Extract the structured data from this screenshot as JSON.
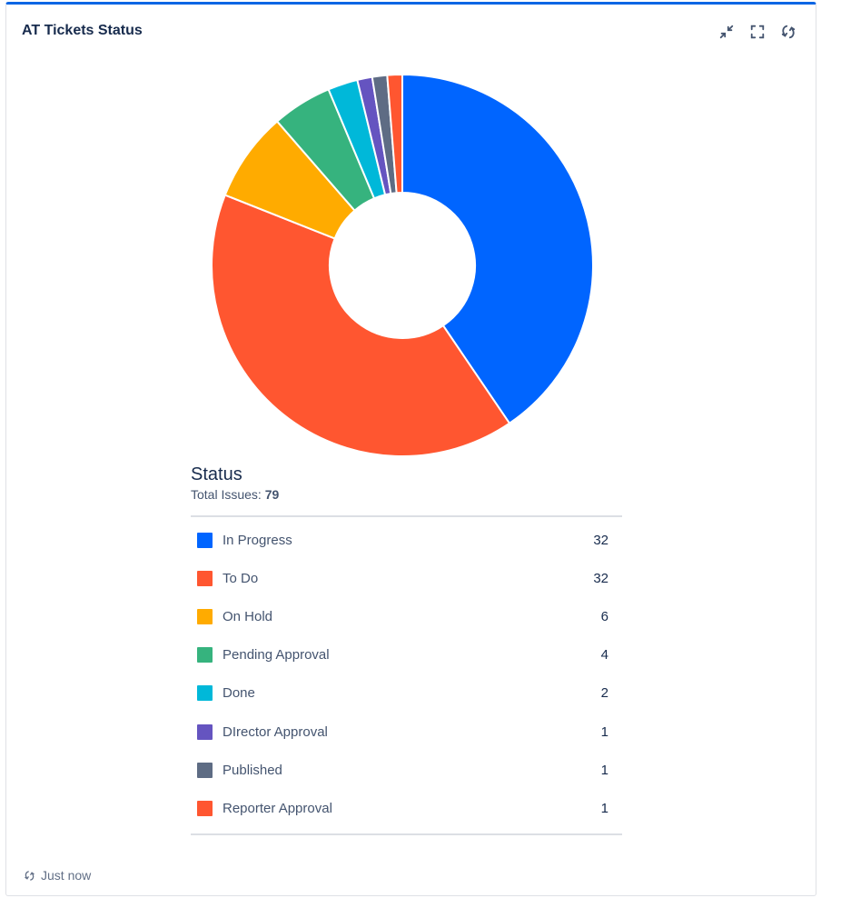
{
  "gadget": {
    "title": "AT Tickets Status",
    "footer_text": "Just now",
    "actions": [
      {
        "icon": "minimize-icon"
      },
      {
        "icon": "fullscreen-icon"
      },
      {
        "icon": "refresh-icon"
      }
    ]
  },
  "chart_data": {
    "type": "pie",
    "title": "Status",
    "total_label": "Total Issues:",
    "total": 79,
    "categories": [
      "In Progress",
      "To Do",
      "On Hold",
      "Pending Approval",
      "Done",
      "DIrector Approval",
      "Published",
      "Reporter Approval"
    ],
    "values": [
      32,
      32,
      6,
      4,
      2,
      1,
      1,
      1
    ],
    "colors": [
      "#0065ff",
      "#ff5630",
      "#ffab00",
      "#36b37e",
      "#00b8d9",
      "#6554c0",
      "#5e6c84",
      "#ff5630"
    ],
    "donut": true
  }
}
